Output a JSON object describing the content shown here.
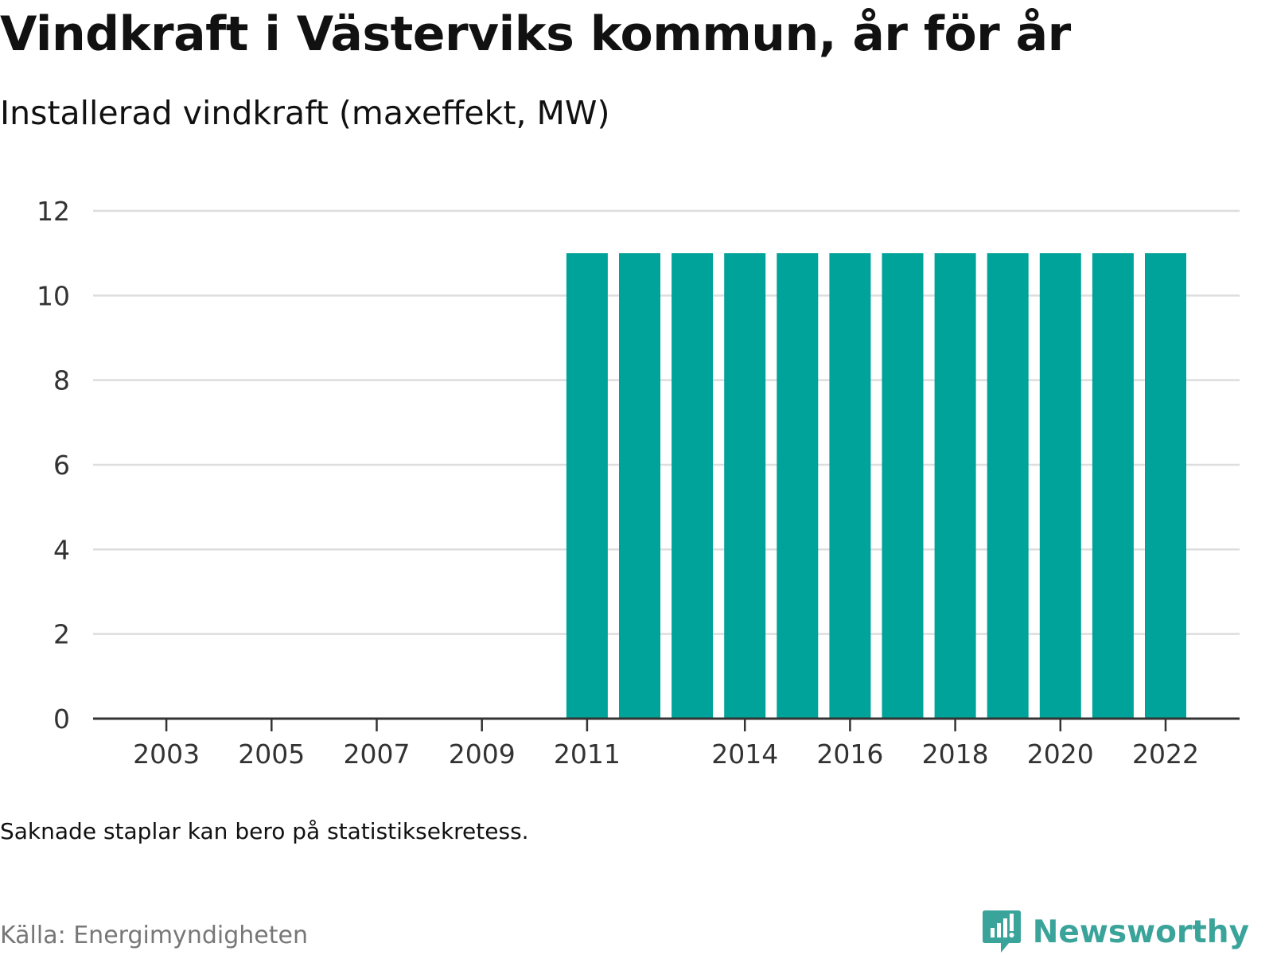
{
  "title": "Vindkraft i Västerviks kommun, år för år",
  "subtitle": "Installerad vindkraft (maxeffekt, MW)",
  "note": "Saknade staplar kan bero på statistiksekretess.",
  "source": "Källa: Energimyndigheten",
  "brand": {
    "name": "Newsworthy",
    "icon": "newsworthy-logo-icon",
    "color": "#3aa39a"
  },
  "colors": {
    "bar": "#00a39a",
    "grid": "#dddddd",
    "axis": "#333333"
  },
  "chart_data": {
    "type": "bar",
    "title": "Vindkraft i Västerviks kommun, år för år",
    "subtitle": "Installerad vindkraft (maxeffekt, MW)",
    "xlabel": "",
    "ylabel": "",
    "x": [
      2002,
      2003,
      2004,
      2005,
      2006,
      2007,
      2008,
      2009,
      2010,
      2011,
      2012,
      2013,
      2014,
      2015,
      2016,
      2017,
      2018,
      2019,
      2020,
      2021,
      2022,
      2023
    ],
    "values": [
      null,
      null,
      null,
      null,
      null,
      null,
      null,
      null,
      null,
      11,
      11,
      11,
      11,
      11,
      11,
      11,
      11,
      11,
      11,
      11,
      11,
      null
    ],
    "x_ticks": [
      2003,
      2005,
      2007,
      2009,
      2011,
      2014,
      2016,
      2018,
      2020,
      2022
    ],
    "y_ticks": [
      0,
      2,
      4,
      6,
      8,
      10,
      12
    ],
    "ylim": [
      0,
      12
    ],
    "grid": true,
    "legend": "none"
  }
}
